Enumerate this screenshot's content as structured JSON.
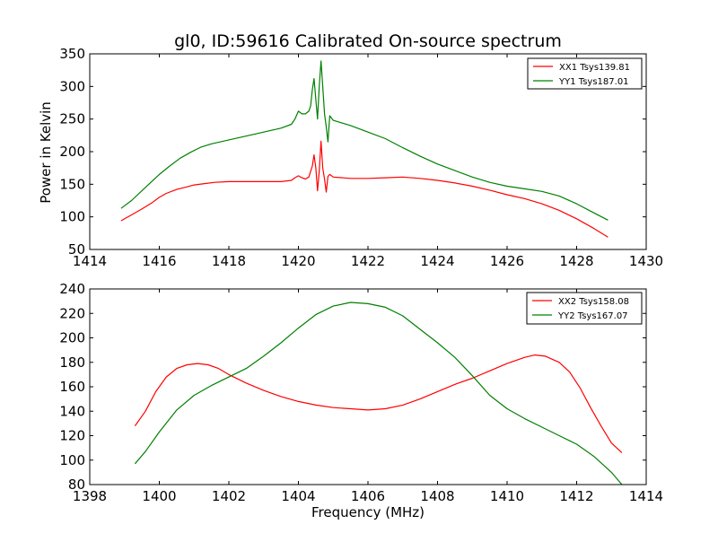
{
  "figure": {
    "title": "gl0, ID:59616 Calibrated On-source spectrum",
    "xlabel": "Frequency (MHz)",
    "ylabel": "Power in Kelvin"
  },
  "colors": {
    "red": "#ff0000",
    "green": "#008000"
  },
  "chart_data": [
    {
      "type": "line",
      "title": "gl0, ID:59616 Calibrated On-source spectrum",
      "xlabel": "",
      "ylabel": "Power in Kelvin",
      "xlim": [
        1414,
        1430
      ],
      "ylim": [
        50,
        350
      ],
      "xticks": [
        1414,
        1416,
        1418,
        1420,
        1422,
        1424,
        1426,
        1428,
        1430
      ],
      "yticks": [
        50,
        100,
        150,
        200,
        250,
        300,
        350
      ],
      "grid": false,
      "legend_position": "top-right",
      "series": [
        {
          "name": "XX1 Tsys139.81",
          "color": "#ff0000",
          "points": [
            [
              1414.9,
              94
            ],
            [
              1415.2,
              103
            ],
            [
              1415.5,
              112
            ],
            [
              1415.8,
              122
            ],
            [
              1416.0,
              130
            ],
            [
              1416.2,
              136
            ],
            [
              1416.5,
              142
            ],
            [
              1416.8,
              146
            ],
            [
              1417.0,
              149
            ],
            [
              1417.3,
              151
            ],
            [
              1417.6,
              153
            ],
            [
              1418.0,
              154
            ],
            [
              1418.5,
              154
            ],
            [
              1419.0,
              154
            ],
            [
              1419.5,
              154
            ],
            [
              1419.8,
              156
            ],
            [
              1419.9,
              160
            ],
            [
              1420.0,
              163
            ],
            [
              1420.1,
              160
            ],
            [
              1420.2,
              158
            ],
            [
              1420.3,
              161
            ],
            [
              1420.4,
              178
            ],
            [
              1420.45,
              195
            ],
            [
              1420.5,
              175
            ],
            [
              1420.55,
              140
            ],
            [
              1420.6,
              170
            ],
            [
              1420.65,
              216
            ],
            [
              1420.7,
              175
            ],
            [
              1420.75,
              158
            ],
            [
              1420.8,
              138
            ],
            [
              1420.85,
              162
            ],
            [
              1420.9,
              165
            ],
            [
              1421.0,
              161
            ],
            [
              1421.5,
              159
            ],
            [
              1422.0,
              159
            ],
            [
              1422.5,
              160
            ],
            [
              1423.0,
              161
            ],
            [
              1423.5,
              159
            ],
            [
              1424.0,
              156
            ],
            [
              1424.5,
              152
            ],
            [
              1425.0,
              147
            ],
            [
              1425.5,
              141
            ],
            [
              1426.0,
              134
            ],
            [
              1426.5,
              128
            ],
            [
              1427.0,
              120
            ],
            [
              1427.5,
              110
            ],
            [
              1428.0,
              97
            ],
            [
              1428.5,
              82
            ],
            [
              1428.9,
              69
            ]
          ]
        },
        {
          "name": "YY1 Tsys187.01",
          "color": "#008000",
          "points": [
            [
              1414.9,
              113
            ],
            [
              1415.2,
              125
            ],
            [
              1415.5,
              140
            ],
            [
              1415.8,
              155
            ],
            [
              1416.0,
              165
            ],
            [
              1416.3,
              178
            ],
            [
              1416.6,
              190
            ],
            [
              1416.9,
              199
            ],
            [
              1417.2,
              207
            ],
            [
              1417.5,
              212
            ],
            [
              1418.0,
              218
            ],
            [
              1418.5,
              224
            ],
            [
              1419.0,
              230
            ],
            [
              1419.5,
              236
            ],
            [
              1419.8,
              242
            ],
            [
              1419.9,
              250
            ],
            [
              1420.0,
              262
            ],
            [
              1420.1,
              258
            ],
            [
              1420.2,
              258
            ],
            [
              1420.3,
              262
            ],
            [
              1420.35,
              270
            ],
            [
              1420.4,
              295
            ],
            [
              1420.45,
              312
            ],
            [
              1420.5,
              280
            ],
            [
              1420.55,
              250
            ],
            [
              1420.6,
              300
            ],
            [
              1420.65,
              339
            ],
            [
              1420.7,
              300
            ],
            [
              1420.75,
              258
            ],
            [
              1420.8,
              238
            ],
            [
              1420.85,
              215
            ],
            [
              1420.9,
              255
            ],
            [
              1421.0,
              248
            ],
            [
              1421.5,
              240
            ],
            [
              1422.0,
              230
            ],
            [
              1422.5,
              220
            ],
            [
              1423.0,
              206
            ],
            [
              1423.5,
              193
            ],
            [
              1424.0,
              181
            ],
            [
              1424.5,
              171
            ],
            [
              1425.0,
              161
            ],
            [
              1425.5,
              153
            ],
            [
              1426.0,
              147
            ],
            [
              1426.5,
              143
            ],
            [
              1427.0,
              139
            ],
            [
              1427.5,
              132
            ],
            [
              1428.0,
              120
            ],
            [
              1428.5,
              106
            ],
            [
              1428.9,
              95
            ]
          ]
        }
      ]
    },
    {
      "type": "line",
      "title": "",
      "xlabel": "Frequency (MHz)",
      "ylabel": "",
      "xlim": [
        1398,
        1414
      ],
      "ylim": [
        80,
        240
      ],
      "xticks": [
        1398,
        1400,
        1402,
        1404,
        1406,
        1408,
        1410,
        1412,
        1414
      ],
      "yticks": [
        80,
        100,
        120,
        140,
        160,
        180,
        200,
        220,
        240
      ],
      "grid": false,
      "legend_position": "top-right",
      "series": [
        {
          "name": "XX2 Tsys158.08",
          "color": "#ff0000",
          "points": [
            [
              1399.3,
              128
            ],
            [
              1399.6,
              140
            ],
            [
              1399.9,
              156
            ],
            [
              1400.2,
              168
            ],
            [
              1400.5,
              175
            ],
            [
              1400.8,
              178
            ],
            [
              1401.1,
              179
            ],
            [
              1401.4,
              178
            ],
            [
              1401.7,
              175
            ],
            [
              1402.0,
              170
            ],
            [
              1402.5,
              163
            ],
            [
              1403.0,
              157
            ],
            [
              1403.5,
              152
            ],
            [
              1404.0,
              148
            ],
            [
              1404.5,
              145
            ],
            [
              1405.0,
              143
            ],
            [
              1405.5,
              142
            ],
            [
              1406.0,
              141
            ],
            [
              1406.5,
              142
            ],
            [
              1407.0,
              145
            ],
            [
              1407.5,
              150
            ],
            [
              1408.0,
              156
            ],
            [
              1408.5,
              162
            ],
            [
              1409.0,
              167
            ],
            [
              1409.5,
              173
            ],
            [
              1410.0,
              179
            ],
            [
              1410.5,
              184
            ],
            [
              1410.8,
              186
            ],
            [
              1411.1,
              185
            ],
            [
              1411.5,
              180
            ],
            [
              1411.8,
              172
            ],
            [
              1412.1,
              159
            ],
            [
              1412.4,
              143
            ],
            [
              1412.7,
              128
            ],
            [
              1413.0,
              114
            ],
            [
              1413.3,
              106
            ]
          ]
        },
        {
          "name": "YY2 Tsys167.07",
          "color": "#008000",
          "points": [
            [
              1399.3,
              97
            ],
            [
              1399.6,
              107
            ],
            [
              1400.0,
              123
            ],
            [
              1400.5,
              141
            ],
            [
              1401.0,
              153
            ],
            [
              1401.5,
              161
            ],
            [
              1402.0,
              168
            ],
            [
              1402.5,
              175
            ],
            [
              1403.0,
              185
            ],
            [
              1403.5,
              196
            ],
            [
              1404.0,
              208
            ],
            [
              1404.5,
              219
            ],
            [
              1405.0,
              226
            ],
            [
              1405.5,
              229
            ],
            [
              1406.0,
              228
            ],
            [
              1406.5,
              225
            ],
            [
              1407.0,
              218
            ],
            [
              1407.5,
              207
            ],
            [
              1408.0,
              196
            ],
            [
              1408.5,
              184
            ],
            [
              1409.0,
              169
            ],
            [
              1409.5,
              153
            ],
            [
              1410.0,
              142
            ],
            [
              1410.5,
              134
            ],
            [
              1411.0,
              127
            ],
            [
              1411.5,
              120
            ],
            [
              1412.0,
              113
            ],
            [
              1412.5,
              103
            ],
            [
              1413.0,
              90
            ],
            [
              1413.3,
              80
            ]
          ]
        }
      ]
    }
  ]
}
